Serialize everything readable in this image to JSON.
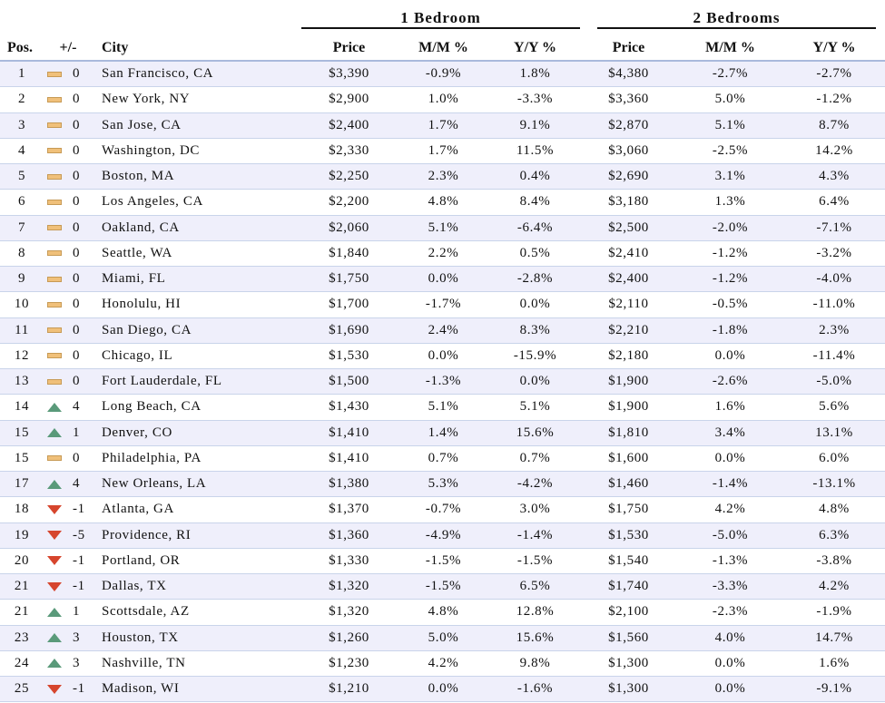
{
  "groups": {
    "one_bed": "1 Bedroom",
    "two_bed": "2 Bedrooms"
  },
  "headers": {
    "pos": "Pos.",
    "change": "+/-",
    "city": "City",
    "price": "Price",
    "mm": "M/M %",
    "yy": "Y/Y %"
  },
  "colors": {
    "flat": "#f0c07a",
    "up": "#5a9a7a",
    "down": "#d6452d",
    "row_alt": "#efeffb"
  },
  "rows": [
    {
      "pos": "1",
      "dir": "flat",
      "chg": "0",
      "city": "San Francisco, CA",
      "p1": "$3,390",
      "mm1": "-0.9%",
      "yy1": "1.8%",
      "p2": "$4,380",
      "mm2": "-2.7%",
      "yy2": "-2.7%"
    },
    {
      "pos": "2",
      "dir": "flat",
      "chg": "0",
      "city": "New York, NY",
      "p1": "$2,900",
      "mm1": "1.0%",
      "yy1": "-3.3%",
      "p2": "$3,360",
      "mm2": "5.0%",
      "yy2": "-1.2%"
    },
    {
      "pos": "3",
      "dir": "flat",
      "chg": "0",
      "city": "San Jose, CA",
      "p1": "$2,400",
      "mm1": "1.7%",
      "yy1": "9.1%",
      "p2": "$2,870",
      "mm2": "5.1%",
      "yy2": "8.7%"
    },
    {
      "pos": "4",
      "dir": "flat",
      "chg": "0",
      "city": "Washington, DC",
      "p1": "$2,330",
      "mm1": "1.7%",
      "yy1": "11.5%",
      "p2": "$3,060",
      "mm2": "-2.5%",
      "yy2": "14.2%"
    },
    {
      "pos": "5",
      "dir": "flat",
      "chg": "0",
      "city": "Boston, MA",
      "p1": "$2,250",
      "mm1": "2.3%",
      "yy1": "0.4%",
      "p2": "$2,690",
      "mm2": "3.1%",
      "yy2": "4.3%"
    },
    {
      "pos": "6",
      "dir": "flat",
      "chg": "0",
      "city": "Los Angeles, CA",
      "p1": "$2,200",
      "mm1": "4.8%",
      "yy1": "8.4%",
      "p2": "$3,180",
      "mm2": "1.3%",
      "yy2": "6.4%"
    },
    {
      "pos": "7",
      "dir": "flat",
      "chg": "0",
      "city": "Oakland, CA",
      "p1": "$2,060",
      "mm1": "5.1%",
      "yy1": "-6.4%",
      "p2": "$2,500",
      "mm2": "-2.0%",
      "yy2": "-7.1%"
    },
    {
      "pos": "8",
      "dir": "flat",
      "chg": "0",
      "city": "Seattle, WA",
      "p1": "$1,840",
      "mm1": "2.2%",
      "yy1": "0.5%",
      "p2": "$2,410",
      "mm2": "-1.2%",
      "yy2": "-3.2%"
    },
    {
      "pos": "9",
      "dir": "flat",
      "chg": "0",
      "city": "Miami, FL",
      "p1": "$1,750",
      "mm1": "0.0%",
      "yy1": "-2.8%",
      "p2": "$2,400",
      "mm2": "-1.2%",
      "yy2": "-4.0%"
    },
    {
      "pos": "10",
      "dir": "flat",
      "chg": "0",
      "city": "Honolulu, HI",
      "p1": "$1,700",
      "mm1": "-1.7%",
      "yy1": "0.0%",
      "p2": "$2,110",
      "mm2": "-0.5%",
      "yy2": "-11.0%"
    },
    {
      "pos": "11",
      "dir": "flat",
      "chg": "0",
      "city": "San Diego, CA",
      "p1": "$1,690",
      "mm1": "2.4%",
      "yy1": "8.3%",
      "p2": "$2,210",
      "mm2": "-1.8%",
      "yy2": "2.3%"
    },
    {
      "pos": "12",
      "dir": "flat",
      "chg": "0",
      "city": "Chicago, IL",
      "p1": "$1,530",
      "mm1": "0.0%",
      "yy1": "-15.9%",
      "p2": "$2,180",
      "mm2": "0.0%",
      "yy2": "-11.4%"
    },
    {
      "pos": "13",
      "dir": "flat",
      "chg": "0",
      "city": "Fort Lauderdale, FL",
      "p1": "$1,500",
      "mm1": "-1.3%",
      "yy1": "0.0%",
      "p2": "$1,900",
      "mm2": "-2.6%",
      "yy2": "-5.0%"
    },
    {
      "pos": "14",
      "dir": "up",
      "chg": "4",
      "city": "Long Beach, CA",
      "p1": "$1,430",
      "mm1": "5.1%",
      "yy1": "5.1%",
      "p2": "$1,900",
      "mm2": "1.6%",
      "yy2": "5.6%"
    },
    {
      "pos": "15",
      "dir": "up",
      "chg": "1",
      "city": "Denver, CO",
      "p1": "$1,410",
      "mm1": "1.4%",
      "yy1": "15.6%",
      "p2": "$1,810",
      "mm2": "3.4%",
      "yy2": "13.1%"
    },
    {
      "pos": "15",
      "dir": "flat",
      "chg": "0",
      "city": "Philadelphia, PA",
      "p1": "$1,410",
      "mm1": "0.7%",
      "yy1": "0.7%",
      "p2": "$1,600",
      "mm2": "0.0%",
      "yy2": "6.0%"
    },
    {
      "pos": "17",
      "dir": "up",
      "chg": "4",
      "city": "New Orleans, LA",
      "p1": "$1,380",
      "mm1": "5.3%",
      "yy1": "-4.2%",
      "p2": "$1,460",
      "mm2": "-1.4%",
      "yy2": "-13.1%"
    },
    {
      "pos": "18",
      "dir": "down",
      "chg": "-1",
      "city": "Atlanta, GA",
      "p1": "$1,370",
      "mm1": "-0.7%",
      "yy1": "3.0%",
      "p2": "$1,750",
      "mm2": "4.2%",
      "yy2": "4.8%"
    },
    {
      "pos": "19",
      "dir": "down",
      "chg": "-5",
      "city": "Providence, RI",
      "p1": "$1,360",
      "mm1": "-4.9%",
      "yy1": "-1.4%",
      "p2": "$1,530",
      "mm2": "-5.0%",
      "yy2": "6.3%"
    },
    {
      "pos": "20",
      "dir": "down",
      "chg": "-1",
      "city": "Portland, OR",
      "p1": "$1,330",
      "mm1": "-1.5%",
      "yy1": "-1.5%",
      "p2": "$1,540",
      "mm2": "-1.3%",
      "yy2": "-3.8%"
    },
    {
      "pos": "21",
      "dir": "down",
      "chg": "-1",
      "city": "Dallas, TX",
      "p1": "$1,320",
      "mm1": "-1.5%",
      "yy1": "6.5%",
      "p2": "$1,740",
      "mm2": "-3.3%",
      "yy2": "4.2%"
    },
    {
      "pos": "21",
      "dir": "up",
      "chg": "1",
      "city": "Scottsdale, AZ",
      "p1": "$1,320",
      "mm1": "4.8%",
      "yy1": "12.8%",
      "p2": "$2,100",
      "mm2": "-2.3%",
      "yy2": "-1.9%"
    },
    {
      "pos": "23",
      "dir": "up",
      "chg": "3",
      "city": "Houston, TX",
      "p1": "$1,260",
      "mm1": "5.0%",
      "yy1": "15.6%",
      "p2": "$1,560",
      "mm2": "4.0%",
      "yy2": "14.7%"
    },
    {
      "pos": "24",
      "dir": "up",
      "chg": "3",
      "city": "Nashville, TN",
      "p1": "$1,230",
      "mm1": "4.2%",
      "yy1": "9.8%",
      "p2": "$1,300",
      "mm2": "0.0%",
      "yy2": "1.6%"
    },
    {
      "pos": "25",
      "dir": "down",
      "chg": "-1",
      "city": "Madison, WI",
      "p1": "$1,210",
      "mm1": "0.0%",
      "yy1": "-1.6%",
      "p2": "$1,300",
      "mm2": "0.0%",
      "yy2": "-9.1%"
    }
  ]
}
